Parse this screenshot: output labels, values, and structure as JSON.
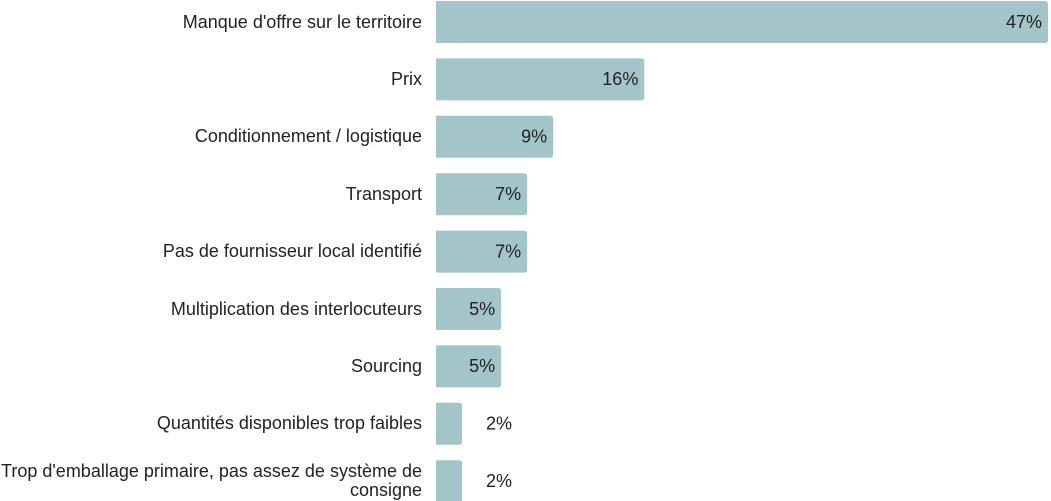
{
  "chart_data": {
    "type": "bar",
    "orientation": "horizontal",
    "categories": [
      "Manque d'offre sur le territoire",
      "Prix",
      "Conditionnement / logistique",
      "Transport",
      "Pas de fournisseur local identifié",
      "Multiplication des interlocuteurs",
      "Sourcing",
      "Quantités disponibles trop faibles",
      "Trop d'emballage primaire, pas assez de système de consigne"
    ],
    "values": [
      47,
      16,
      9,
      7,
      7,
      5,
      5,
      2,
      2
    ],
    "value_labels": [
      "47%",
      "16%",
      "9%",
      "7%",
      "7%",
      "5%",
      "5%",
      "2%",
      "2%"
    ],
    "color": "#a3c4c9"
  }
}
